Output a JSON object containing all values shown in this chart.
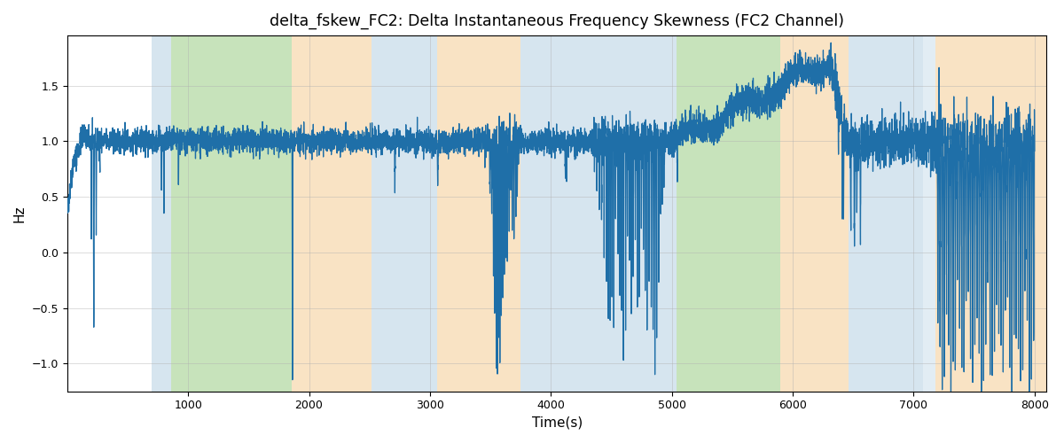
{
  "title": "delta_fskew_FC2: Delta Instantaneous Frequency Skewness (FC2 Channel)",
  "xlabel": "Time(s)",
  "ylabel": "Hz",
  "xlim": [
    0,
    8100
  ],
  "ylim": [
    -1.25,
    1.95
  ],
  "bg_regions": [
    {
      "xmin": 700,
      "xmax": 860,
      "color": "#aecde0",
      "alpha": 0.5
    },
    {
      "xmin": 860,
      "xmax": 1860,
      "color": "#90c878",
      "alpha": 0.5
    },
    {
      "xmin": 1860,
      "xmax": 2520,
      "color": "#f5c98a",
      "alpha": 0.5
    },
    {
      "xmin": 2520,
      "xmax": 3060,
      "color": "#aecde0",
      "alpha": 0.5
    },
    {
      "xmin": 3060,
      "xmax": 3750,
      "color": "#f5c98a",
      "alpha": 0.5
    },
    {
      "xmin": 3750,
      "xmax": 4950,
      "color": "#aecde0",
      "alpha": 0.5
    },
    {
      "xmin": 4950,
      "xmax": 5040,
      "color": "#aecde0",
      "alpha": 0.5
    },
    {
      "xmin": 5040,
      "xmax": 5900,
      "color": "#90c878",
      "alpha": 0.5
    },
    {
      "xmin": 5900,
      "xmax": 6460,
      "color": "#f5c98a",
      "alpha": 0.5
    },
    {
      "xmin": 6460,
      "xmax": 7080,
      "color": "#aecde0",
      "alpha": 0.5
    },
    {
      "xmin": 7080,
      "xmax": 7180,
      "color": "#aecde0",
      "alpha": 0.35
    },
    {
      "xmin": 7180,
      "xmax": 8100,
      "color": "#f5c98a",
      "alpha": 0.5
    }
  ],
  "line_color": "#1f6fa8",
  "line_width": 0.9,
  "grid_color": "#b0b0b0",
  "grid_alpha": 0.6,
  "bg_color": "#ffffff",
  "xticks": [
    1000,
    2000,
    3000,
    4000,
    5000,
    6000,
    7000,
    8000
  ],
  "yticks": [
    -1.0,
    -0.5,
    0.0,
    0.5,
    1.0,
    1.5
  ],
  "figsize": [
    12.0,
    5.0
  ],
  "dpi": 100
}
